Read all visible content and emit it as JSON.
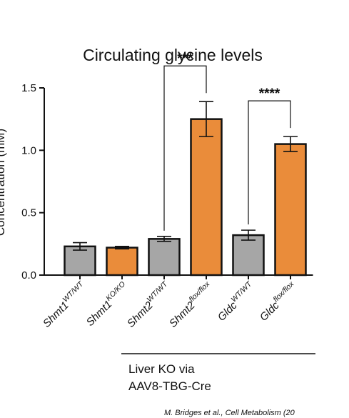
{
  "colors": {
    "wt": "#a6a6a6",
    "ko": "#ea8c3a",
    "ink": "#111111"
  },
  "chart_data": {
    "type": "bar",
    "title": "Circulating glycine levels",
    "ylabel": "Concentration (mM)",
    "ylim": [
      0,
      1.5
    ],
    "yticks": [
      0.0,
      0.5,
      1.0,
      1.5
    ],
    "ytick_labels": [
      "0.0",
      "0.5",
      "1.0",
      "1.5"
    ],
    "grid": false,
    "categories": [
      {
        "gene": "Shmt1",
        "sup": "WT/WT",
        "value": 0.23,
        "err": 0.03,
        "group": "wt"
      },
      {
        "gene": "Shmt1",
        "sup": "KO/KO",
        "value": 0.22,
        "err": 0.01,
        "group": "ko"
      },
      {
        "gene": "Shmt2",
        "sup": "WT/WT",
        "value": 0.29,
        "err": 0.02,
        "group": "wt"
      },
      {
        "gene": "Shmt2",
        "sup": "flox/flox",
        "value": 1.25,
        "err": 0.14,
        "group": "ko"
      },
      {
        "gene": "Gldc",
        "sup": "WT/WT",
        "value": 0.32,
        "err": 0.04,
        "group": "wt"
      },
      {
        "gene": "Gldc",
        "sup": "flox/flox",
        "value": 1.05,
        "err": 0.06,
        "group": "ko"
      }
    ],
    "significance": [
      {
        "from": 2,
        "to": 3,
        "label": "***"
      },
      {
        "from": 4,
        "to": 5,
        "label": "****"
      }
    ],
    "group_annotation": {
      "line1": "Liver KO via",
      "line2": "AAV8-TBG-Cre",
      "from": 2,
      "to": 5
    }
  },
  "credit": "M. Bridges et al., Cell Metabolism (20"
}
